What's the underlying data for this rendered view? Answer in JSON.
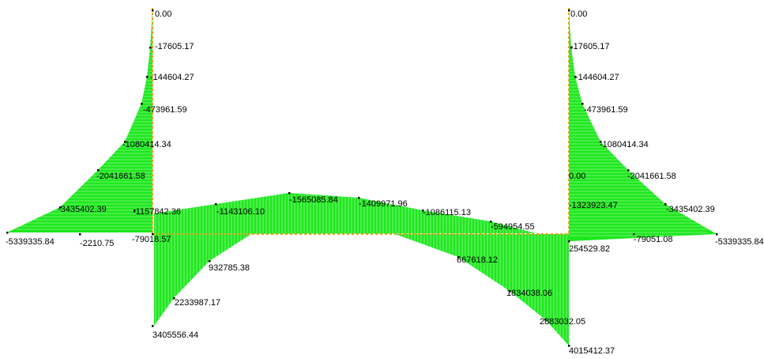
{
  "colors": {
    "fill": "#1de81d",
    "hatch": "#c8f5c8",
    "member": "#e8a010",
    "node": "#000000",
    "background": "#ffffff"
  },
  "labels": {
    "left_column": [
      "0.00",
      "-17605.17",
      "-144604.27",
      "-473961.59",
      "-1080414.34",
      "-2041661.58",
      "-3435402.39",
      "-5339335.84",
      "-2210.75"
    ],
    "left_column_base": [
      "-1157842.36",
      "-79018.57",
      "3405556.44"
    ],
    "beam_top": [
      "-1143106.10",
      "-1565085.84",
      "-1409971.96",
      "-1086115.13",
      "-594954.55"
    ],
    "beam_bottom": [
      "932785.38",
      "2233987.17",
      "667618.12",
      "1834038.06",
      "2883032.05"
    ],
    "right_column": [
      "0.00",
      "-17605.17",
      "-144604.27",
      "-473961.59",
      "-1080414.34",
      "-2041661.58",
      "-3435402.39",
      "-5339335.84"
    ],
    "right_column_base": [
      "0.00",
      "-1323923.47",
      "-79051.08",
      "254529.82",
      "4015412.37"
    ]
  }
}
